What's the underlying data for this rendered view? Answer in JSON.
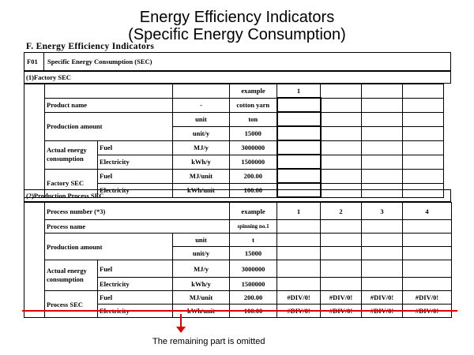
{
  "slide": {
    "title_line1": "Energy Efficiency Indicators",
    "title_line2": "(Specific Energy Consumption)",
    "section_title": "F. Energy Efficiency Indicators",
    "f01_code": "F01",
    "f01_label": "Specific Energy Consumption (SEC)",
    "omitted_note": "The remaining part is omitted"
  },
  "factory": {
    "heading": "(1)Factory SEC",
    "col_example": "example",
    "col_1": "1",
    "product_name": "Product name",
    "product_unit": "-",
    "product_example": "cotton yarn",
    "production_amount": "Production amount",
    "unit_label": "unit",
    "unit_value": "ton",
    "unit_y_label": "unit/y",
    "unit_y_value": "15000",
    "actual_energy": "Actual energy consumption",
    "fuel": "Fuel",
    "fuel_unit": "MJ/y",
    "fuel_value": "3000000",
    "electricity": "Electricity",
    "elec_unit": "kWh/y",
    "elec_value": "1500000",
    "factory_sec": "Factory SEC",
    "sec_fuel_unit": "MJ/unit",
    "sec_fuel_value": "200.00",
    "sec_elec_unit": "kWh/unit",
    "sec_elec_value": "100.00"
  },
  "process": {
    "heading": "(2)Production Process SEC",
    "process_number": "Process number (*3)",
    "col_example": "example",
    "cols": [
      "1",
      "2",
      "3",
      "4"
    ],
    "process_name": "Process name",
    "process_example": "spinning no.1",
    "production_amount": "Production amount",
    "unit_label": "unit",
    "unit_value": "t",
    "unit_y_label": "unit/y",
    "unit_y_value": "15000",
    "actual_energy": "Actual energy consumption",
    "fuel": "Fuel",
    "fuel_unit": "MJ/y",
    "fuel_value": "3000000",
    "electricity": "Electricity",
    "elec_unit": "kWh/y",
    "elec_value": "1500000",
    "process_sec": "Process SEC",
    "sec_fuel_unit": "MJ/unit",
    "sec_fuel_value": "200.00",
    "sec_elec_unit": "kWh/unit",
    "sec_elec_value": "100.00",
    "div_error": "#DIV/0!"
  }
}
